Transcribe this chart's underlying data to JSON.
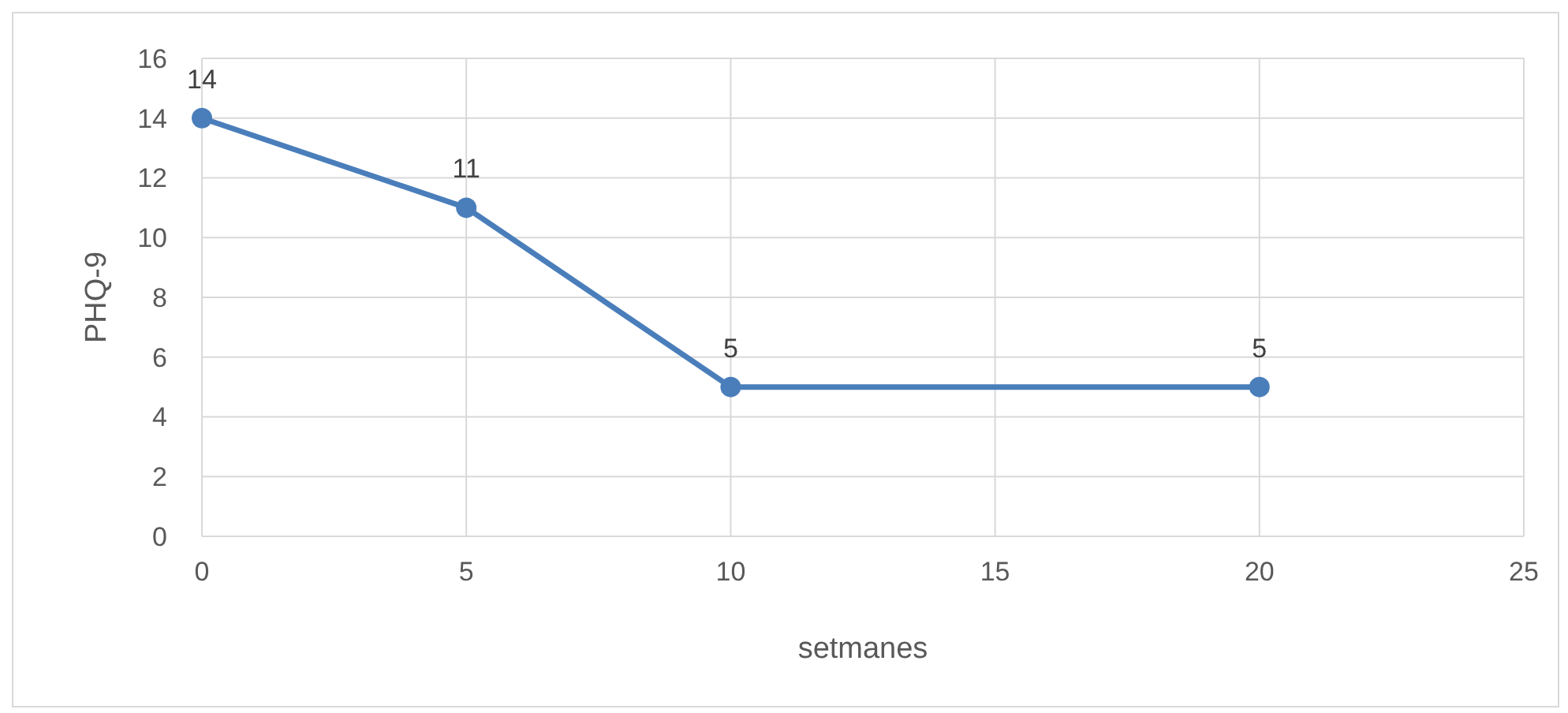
{
  "chart_data": {
    "type": "line",
    "xlabel": "setmanes",
    "ylabel": "PHQ-9",
    "x": [
      0,
      5,
      10,
      20
    ],
    "series": [
      {
        "color": "#4a7ebb",
        "values": [
          14,
          11,
          5,
          5
        ]
      }
    ],
    "xlim": [
      0,
      25
    ],
    "xticks": [
      0,
      5,
      10,
      15,
      20,
      25
    ],
    "ylim": [
      0,
      16
    ],
    "yticks": [
      0,
      2,
      4,
      6,
      8,
      10,
      12,
      14,
      16
    ],
    "grid": true,
    "marker": "circle",
    "line_style": "solid",
    "data_labels": true
  }
}
